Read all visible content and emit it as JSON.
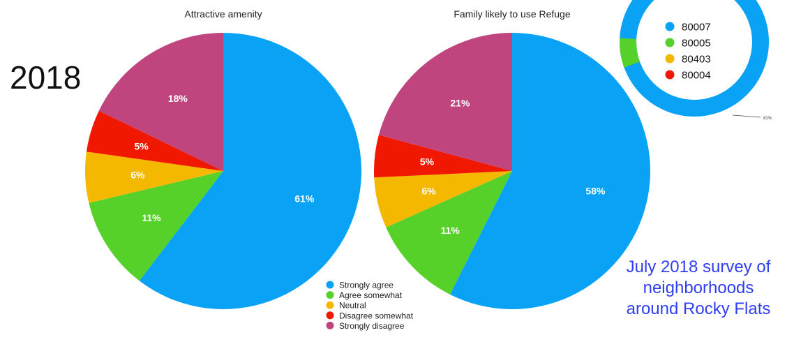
{
  "year_label": "2018",
  "note": {
    "lines": [
      "July 2018 survey of",
      "neighborhoods",
      "around Rocky Flats"
    ],
    "color": "#2f3ff0"
  },
  "chart_data": [
    {
      "type": "pie",
      "title": "Attractive amenity",
      "categories": [
        "Strongly agree",
        "Agree somewhat",
        "Neutral",
        "Disagree somewhat",
        "Strongly disagree"
      ],
      "values": [
        61,
        11,
        6,
        5,
        18
      ],
      "labels": [
        "61%",
        "11%",
        "6%",
        "5%",
        "18%"
      ],
      "colors": [
        "#0aa2f5",
        "#56d12a",
        "#f5b800",
        "#f01800",
        "#c0457f"
      ]
    },
    {
      "type": "pie",
      "title": "Family likely to use Refuge",
      "categories": [
        "Strongly agree",
        "Agree somewhat",
        "Neutral",
        "Disagree somewhat",
        "Strongly disagree"
      ],
      "values": [
        58,
        11,
        6,
        5,
        21
      ],
      "labels": [
        "58%",
        "11%",
        "6%",
        "5%",
        "21%"
      ],
      "colors": [
        "#0aa2f5",
        "#56d12a",
        "#f5b800",
        "#f01800",
        "#c0457f"
      ]
    },
    {
      "type": "pie",
      "variant": "donut",
      "title": "",
      "categories": [
        "80007",
        "80005",
        "80403",
        "80004"
      ],
      "colors": [
        "#0aa2f5",
        "#56d12a",
        "#f5b800",
        "#f01800"
      ],
      "visible_label": "81%",
      "cropped": true
    }
  ],
  "legend": {
    "items": [
      {
        "label": "Strongly agree",
        "color": "#0aa2f5"
      },
      {
        "label": "Agree somewhat",
        "color": "#56d12a"
      },
      {
        "label": "Neutral",
        "color": "#f5b800"
      },
      {
        "label": "Disagree somewhat",
        "color": "#f01800"
      },
      {
        "label": "Strongly disagree",
        "color": "#c0457f"
      }
    ]
  }
}
